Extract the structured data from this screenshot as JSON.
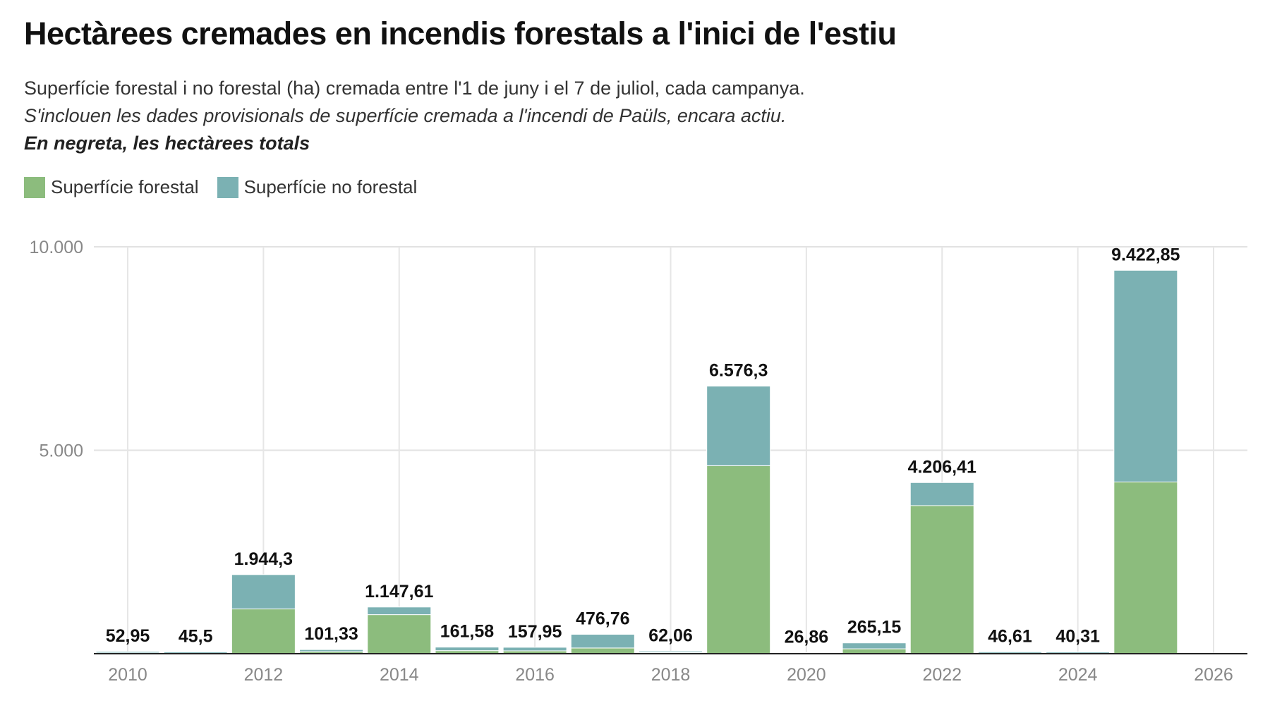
{
  "chart_data": {
    "type": "bar",
    "stacked": true,
    "title": "Hectàrees cremades en incendis forestals a l'inici de l'estiu",
    "subtitle": "Superfície forestal i no forestal (ha) cremada entre l'1 de juny i el 7 de juliol, cada campanya.",
    "note": "S'inclouen les dades provisionals de superfície cremada a l'incendi de Paüls, encara actiu.",
    "note2": "En negreta, les hectàrees totals",
    "legend_position": "top-left",
    "grid": true,
    "ylim": [
      0,
      10000
    ],
    "xlim": [
      2010,
      2026
    ],
    "y_ticks": [
      {
        "v": 0,
        "label": ""
      },
      {
        "v": 5000,
        "label": "5.000"
      },
      {
        "v": 10000,
        "label": "10.000"
      }
    ],
    "x_ticks": [
      "2010",
      "2012",
      "2014",
      "2016",
      "2018",
      "2020",
      "2022",
      "2024",
      "2026"
    ],
    "x": [
      2010,
      2011,
      2012,
      2013,
      2014,
      2015,
      2016,
      2017,
      2018,
      2019,
      2020,
      2021,
      2022,
      2023,
      2024,
      2025
    ],
    "series": [
      {
        "name": "Superfície forestal",
        "color": "#8cbc7d",
        "values": [
          25,
          20,
          1100,
          50,
          960,
          75,
          70,
          140,
          30,
          4620,
          12,
          120,
          3640,
          20,
          18,
          4220
        ]
      },
      {
        "name": "Superfície no forestal",
        "color": "#7bb1b3",
        "values": [
          27.95,
          25.5,
          844.3,
          51.33,
          187.61,
          86.58,
          87.95,
          336.76,
          32.06,
          1956.3,
          14.86,
          145.15,
          566.41,
          26.61,
          22.31,
          5202.85
        ]
      }
    ],
    "total_labels": [
      "52,95",
      "45,5",
      "1.944,3",
      "101,33",
      "1.147,61",
      "161,58",
      "157,95",
      "476,76",
      "62,06",
      "6.576,3",
      "26,86",
      "265,15",
      "4.206,41",
      "46,61",
      "40,31",
      "9.422,85"
    ]
  }
}
